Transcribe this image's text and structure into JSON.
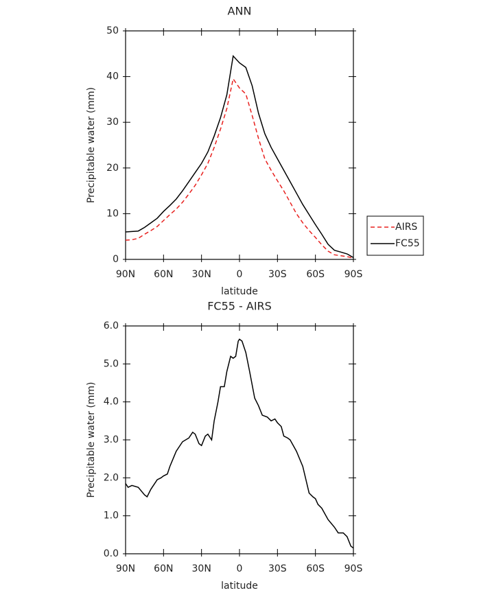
{
  "chart_data": [
    {
      "type": "line",
      "title": "ANN",
      "x_label": "latitude",
      "y_label": "Precipitable water (mm)",
      "xlim": [
        90,
        -90
      ],
      "xticks": [
        {
          "value": 90,
          "label": "90N"
        },
        {
          "value": 60,
          "label": "60N"
        },
        {
          "value": 30,
          "label": "30N"
        },
        0,
        {
          "value": -30,
          "label": "30S"
        },
        {
          "value": -60,
          "label": "60S"
        },
        {
          "value": -90,
          "label": "90S"
        }
      ],
      "ylim": [
        0,
        50
      ],
      "yticks": [
        0,
        10,
        20,
        30,
        40,
        50
      ],
      "legend": "outside right",
      "x": [
        90,
        85,
        80,
        75,
        70,
        65,
        60,
        55,
        50,
        45,
        40,
        35,
        30,
        25,
        20,
        15,
        10,
        5,
        0,
        -5,
        -10,
        -15,
        -20,
        -25,
        -30,
        -35,
        -40,
        -45,
        -50,
        -55,
        -60,
        -65,
        -70,
        -75,
        -80,
        -85,
        -90
      ],
      "series": [
        {
          "name": "AIRS",
          "color": "#e8201e",
          "dashed": true,
          "values": [
            4.2,
            4.3,
            4.6,
            5.5,
            6.3,
            7.2,
            8.5,
            9.8,
            11,
            12.5,
            14.3,
            16.2,
            18.5,
            21,
            24.5,
            28.5,
            33,
            39.5,
            37.5,
            36.2,
            31.5,
            26.5,
            22,
            19.5,
            17.2,
            15,
            12.5,
            10,
            8,
            6.3,
            4.8,
            3.2,
            1.8,
            1,
            0.8,
            0.6,
            0.3
          ]
        },
        {
          "name": "FC55",
          "color": "#000000",
          "dashed": false,
          "values": [
            6.0,
            6.1,
            6.2,
            7.0,
            8.0,
            9.0,
            10.5,
            11.8,
            13.2,
            15,
            17,
            19,
            21,
            23.5,
            27,
            31,
            36,
            44.5,
            43,
            42,
            38,
            32,
            27.5,
            24.5,
            22,
            19.5,
            17,
            14.5,
            12,
            9.8,
            7.6,
            5.5,
            3.3,
            2,
            1.6,
            1.2,
            0.4
          ]
        }
      ]
    },
    {
      "type": "line",
      "title": "FC55 - AIRS",
      "x_label": "latitude",
      "y_label": "Precipitable water (mm)",
      "xlim": [
        90,
        -90
      ],
      "xticks": [
        {
          "value": 90,
          "label": "90N"
        },
        {
          "value": 60,
          "label": "60N"
        },
        {
          "value": 30,
          "label": "30N"
        },
        0,
        {
          "value": -30,
          "label": "30S"
        },
        {
          "value": -60,
          "label": "60S"
        },
        {
          "value": -90,
          "label": "90S"
        }
      ],
      "ylim": [
        0,
        6
      ],
      "yticks": [
        {
          "value": 0,
          "label": "0.0"
        },
        {
          "value": 1,
          "label": "1.0"
        },
        {
          "value": 2,
          "label": "2.0"
        },
        {
          "value": 3,
          "label": "3.0"
        },
        {
          "value": 4,
          "label": "4.0"
        },
        {
          "value": 5,
          "label": "5.0"
        },
        {
          "value": 6,
          "label": "6.0"
        }
      ],
      "x": [
        90,
        88,
        85,
        80,
        75,
        73,
        70,
        65,
        62,
        60,
        57,
        55,
        50,
        45,
        40,
        37,
        35,
        32,
        30,
        27,
        25,
        22,
        20,
        17,
        15,
        12,
        10,
        7,
        5,
        3,
        1,
        0,
        -2,
        -5,
        -8,
        -12,
        -15,
        -18,
        -22,
        -25,
        -28,
        -30,
        -33,
        -35,
        -38,
        -40,
        -45,
        -50,
        -55,
        -58,
        -60,
        -62,
        -65,
        -70,
        -75,
        -78,
        -82,
        -85,
        -88,
        -90
      ],
      "series": [
        {
          "color": "#000000",
          "dashed": false,
          "values": [
            1.85,
            1.75,
            1.8,
            1.75,
            1.55,
            1.5,
            1.7,
            1.95,
            2.0,
            2.05,
            2.1,
            2.3,
            2.7,
            2.95,
            3.05,
            3.2,
            3.15,
            2.9,
            2.85,
            3.1,
            3.15,
            3.0,
            3.5,
            4.0,
            4.4,
            4.4,
            4.8,
            5.2,
            5.15,
            5.2,
            5.6,
            5.65,
            5.6,
            5.3,
            4.8,
            4.1,
            3.9,
            3.65,
            3.6,
            3.5,
            3.55,
            3.45,
            3.35,
            3.1,
            3.05,
            3.0,
            2.7,
            2.3,
            1.6,
            1.5,
            1.45,
            1.3,
            1.2,
            0.9,
            0.7,
            0.55,
            0.55,
            0.45,
            0.2,
            0.15
          ]
        }
      ]
    }
  ]
}
